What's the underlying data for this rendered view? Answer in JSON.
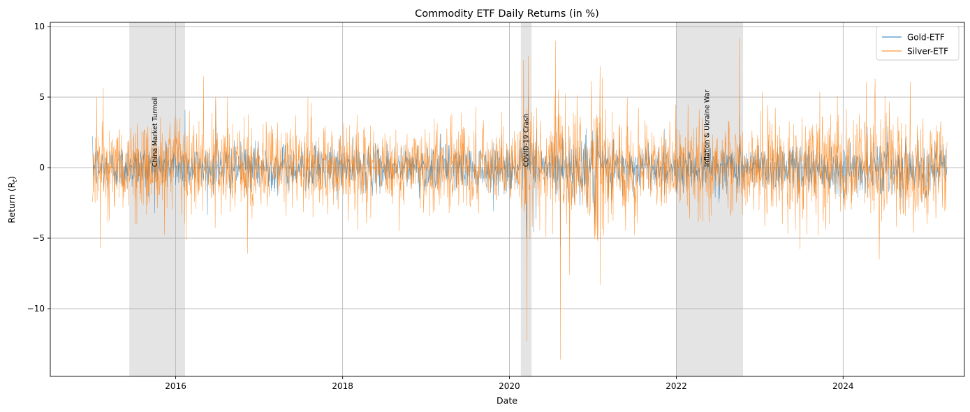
{
  "chart_data": {
    "type": "line",
    "title": "Commodity ETF Daily Returns (in %)",
    "xlabel": "Date",
    "ylabel": "Return (R",
    "ylabel_sub": "t",
    "ylabel_close": ")",
    "xlim": [
      "2014-07-01",
      "2025-06-15"
    ],
    "ylim": [
      -14.8,
      10.3
    ],
    "x_ticks": [
      {
        "date": "2016-01-01",
        "label": "2016"
      },
      {
        "date": "2018-01-01",
        "label": "2018"
      },
      {
        "date": "2020-01-01",
        "label": "2020"
      },
      {
        "date": "2022-01-01",
        "label": "2022"
      },
      {
        "date": "2024-01-01",
        "label": "2024"
      }
    ],
    "y_ticks": [
      {
        "value": 10,
        "label": "10"
      },
      {
        "value": 5,
        "label": "5"
      },
      {
        "value": 0,
        "label": "0"
      },
      {
        "value": -5,
        "label": "−5"
      },
      {
        "value": -10,
        "label": "−10"
      }
    ],
    "grid": true,
    "legend_position": "top-right",
    "date_range": [
      "2015-01-02",
      "2025-03-31"
    ],
    "series": [
      {
        "name": "Gold-ETF",
        "color": "#1f77b4",
        "typical_abs_return": 0.8,
        "peaks": [
          {
            "date": "2016-02-11",
            "value": 4.1
          },
          {
            "date": "2016-06-24",
            "value": 4.8
          },
          {
            "date": "2020-03-16",
            "value": -5.0
          },
          {
            "date": "2020-03-24",
            "value": 5.0
          },
          {
            "date": "2020-08-11",
            "value": -5.6
          },
          {
            "date": "2021-01-08",
            "value": -4.0
          },
          {
            "date": "2022-10-04",
            "value": 3.8
          },
          {
            "date": "2024-04-16",
            "value": 2.9
          }
        ]
      },
      {
        "name": "Silver-ETF",
        "color": "#ff7f0e",
        "typical_abs_return": 1.6,
        "peaks": [
          {
            "date": "2015-01-20",
            "value": 5.0
          },
          {
            "date": "2015-02-05",
            "value": -5.7
          },
          {
            "date": "2016-06-24",
            "value": 5.0
          },
          {
            "date": "2016-11-11",
            "value": -6.1
          },
          {
            "date": "2019-08-07",
            "value": 4.3
          },
          {
            "date": "2020-03-18",
            "value": -12.3
          },
          {
            "date": "2020-03-24",
            "value": 7.9
          },
          {
            "date": "2020-07-21",
            "value": 9.0
          },
          {
            "date": "2020-08-11",
            "value": -13.6
          },
          {
            "date": "2020-09-21",
            "value": -7.6
          },
          {
            "date": "2021-02-01",
            "value": 7.2
          },
          {
            "date": "2021-02-02",
            "value": -8.3
          },
          {
            "date": "2022-10-04",
            "value": 9.2
          },
          {
            "date": "2024-05-20",
            "value": 6.3
          },
          {
            "date": "2024-06-07",
            "value": -6.5
          },
          {
            "date": "2024-10-21",
            "value": 6.1
          }
        ]
      }
    ],
    "annotations": [
      {
        "label": "China Market Turmoil",
        "start": "2015-06-12",
        "end": "2016-02-11",
        "color": "#dddddd"
      },
      {
        "label": "COVID-19 Crash",
        "start": "2020-02-20",
        "end": "2020-04-07",
        "color": "#dddddd"
      },
      {
        "label": "Inflation & Ukraine War",
        "start": "2022-01-01",
        "end": "2022-10-20",
        "color": "#dddddd"
      }
    ]
  }
}
